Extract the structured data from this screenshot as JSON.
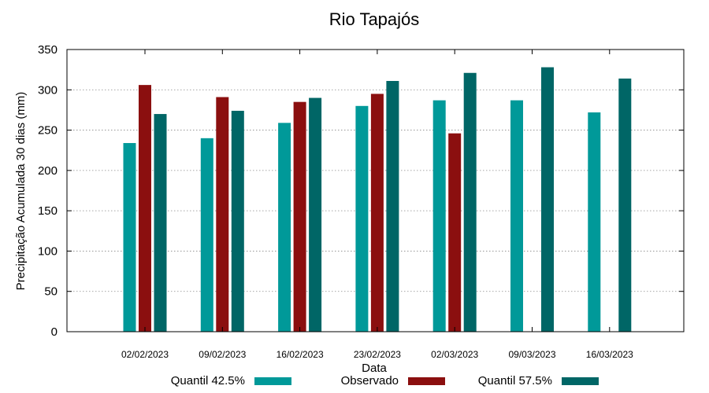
{
  "chart_data": {
    "type": "bar",
    "title": "Rio Tapajós",
    "xlabel": "Data",
    "ylabel": "Precipitação Acumulada 30 dias (mm)",
    "ylim": [
      0,
      350
    ],
    "yticks": [
      0,
      50,
      100,
      150,
      200,
      250,
      300,
      350
    ],
    "grid": true,
    "legend_position": "bottom",
    "categories": [
      "02/02/2023",
      "09/02/2023",
      "16/02/2023",
      "23/02/2023",
      "02/03/2023",
      "09/03/2023",
      "16/03/2023"
    ],
    "series": [
      {
        "name": "Quantil 42.5%",
        "color": "#009999",
        "values": [
          234,
          240,
          259,
          280,
          287,
          287,
          272
        ]
      },
      {
        "name": "Observado",
        "color": "#8b0f0f",
        "values": [
          306,
          291,
          285,
          295,
          246,
          null,
          null
        ]
      },
      {
        "name": "Quantil 57.5%",
        "color": "#006666",
        "values": [
          270,
          274,
          290,
          311,
          321,
          328,
          314
        ]
      }
    ]
  }
}
